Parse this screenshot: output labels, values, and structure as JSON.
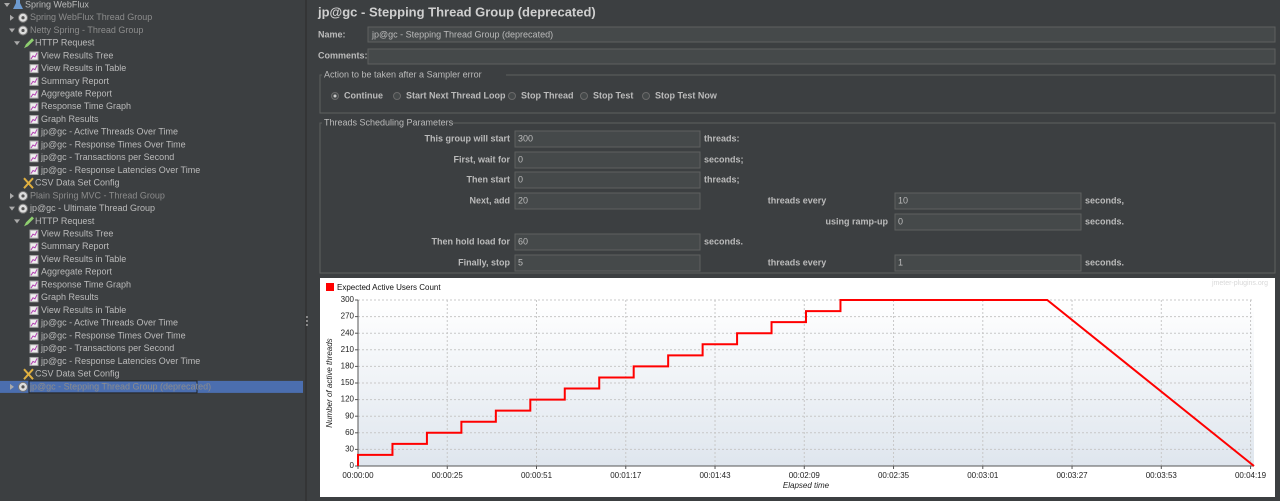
{
  "header": {
    "title": "jp@gc - Stepping Thread Group (deprecated)"
  },
  "tree": {
    "label": "Spring WebFlux",
    "children": [
      {
        "label": "Spring WebFlux Thread Group",
        "disabled": true,
        "expanded": false
      },
      {
        "label": "Netty Spring - Thread Group",
        "disabled": true,
        "children": [
          {
            "label": "HTTP Request",
            "children": [
              {
                "label": "View Results Tree"
              },
              {
                "label": "View Results in Table"
              },
              {
                "label": "Summary Report"
              },
              {
                "label": "Aggregate Report"
              },
              {
                "label": "Response Time Graph"
              },
              {
                "label": "Graph Results"
              },
              {
                "label": "jp@gc - Active Threads Over Time"
              },
              {
                "label": "jp@gc - Response Times Over Time"
              },
              {
                "label": "jp@gc - Transactions per Second"
              },
              {
                "label": "jp@gc - Response Latencies Over Time"
              }
            ]
          },
          {
            "label": "CSV Data Set Config"
          }
        ]
      },
      {
        "label": "Plain Spring MVC - Thread Group",
        "disabled": true,
        "expanded": false
      },
      {
        "label": "jp@gc - Ultimate Thread Group",
        "children": [
          {
            "label": "HTTP Request",
            "children": [
              {
                "label": "View Results Tree"
              },
              {
                "label": "Summary Report"
              },
              {
                "label": "View Results in Table"
              },
              {
                "label": "Aggregate Report"
              },
              {
                "label": "Response Time Graph"
              },
              {
                "label": "Graph Results"
              },
              {
                "label": "View Results in Table"
              },
              {
                "label": "jp@gc - Active Threads Over Time"
              },
              {
                "label": "jp@gc - Response Times Over Time"
              },
              {
                "label": "jp@gc - Transactions per Second"
              },
              {
                "label": "jp@gc - Response Latencies Over Time"
              }
            ]
          },
          {
            "label": "CSV Data Set Config"
          }
        ]
      },
      {
        "label": "jp@gc - Stepping Thread Group (deprecated)",
        "disabled": true,
        "selected": true,
        "expanded": false
      }
    ]
  },
  "form": {
    "name_label": "Name:",
    "name_value": "jp@gc - Stepping Thread Group (deprecated)",
    "comments_label": "Comments:"
  },
  "sampler_error": {
    "legend": "Action to be taken after a Sampler error",
    "options": [
      "Continue",
      "Start Next Thread Loop",
      "Stop Thread",
      "Stop Test",
      "Stop Test Now"
    ],
    "selected": 0
  },
  "scheduling": {
    "legend": "Threads Scheduling Parameters",
    "rows": [
      {
        "label": "This group will start",
        "value": "300",
        "unit": "threads:"
      },
      {
        "label": "First, wait for",
        "value": "0",
        "unit": "seconds;"
      },
      {
        "label": "Then start",
        "value": "0",
        "unit": "threads;"
      },
      {
        "label": "Next, add",
        "value": "20",
        "label2": "threads every",
        "value2": "10",
        "unit2": "seconds,"
      },
      {
        "label2": "using ramp-up",
        "value2": "0",
        "unit2": "seconds."
      },
      {
        "label": "Then hold load for",
        "value": "60",
        "unit": "seconds."
      },
      {
        "label": "Finally, stop",
        "value": "5",
        "label2": "threads every",
        "value2": "1",
        "unit2": "seconds."
      }
    ]
  },
  "chart_data": {
    "type": "line",
    "watermark": "jmeter-plugins.org",
    "xlabel": "Elapsed time",
    "ylabel": "Number of active threads",
    "x": [
      0,
      0,
      10,
      10,
      20,
      20,
      30,
      30,
      40,
      40,
      50,
      50,
      60,
      60,
      70,
      70,
      80,
      80,
      90,
      90,
      100,
      100,
      110,
      110,
      120,
      120,
      130,
      130,
      140,
      140,
      200,
      260
    ],
    "series": [
      {
        "name": "Expected Active Users Count",
        "color": "#ff0000",
        "values": [
          0,
          20,
          20,
          40,
          40,
          60,
          60,
          80,
          80,
          100,
          100,
          120,
          120,
          140,
          140,
          160,
          160,
          180,
          180,
          200,
          200,
          220,
          220,
          240,
          240,
          260,
          260,
          280,
          280,
          300,
          300,
          0
        ]
      }
    ],
    "xlim": [
      0,
      260
    ],
    "xticks": [
      {
        "value": 0,
        "label": "00:00:00"
      },
      {
        "value": 25.9,
        "label": "00:00:25"
      },
      {
        "value": 51.8,
        "label": "00:00:51"
      },
      {
        "value": 77.7,
        "label": "00:01:17"
      },
      {
        "value": 103.6,
        "label": "00:01:43"
      },
      {
        "value": 129.5,
        "label": "00:02:09"
      },
      {
        "value": 155.4,
        "label": "00:02:35"
      },
      {
        "value": 181.3,
        "label": "00:03:01"
      },
      {
        "value": 207.2,
        "label": "00:03:27"
      },
      {
        "value": 233.1,
        "label": "00:03:53"
      },
      {
        "value": 259,
        "label": "00:04:19"
      }
    ],
    "ylim": [
      0,
      300
    ],
    "yticks": [
      0,
      30,
      60,
      90,
      120,
      150,
      180,
      210,
      240,
      270,
      300
    ],
    "grid": true
  }
}
